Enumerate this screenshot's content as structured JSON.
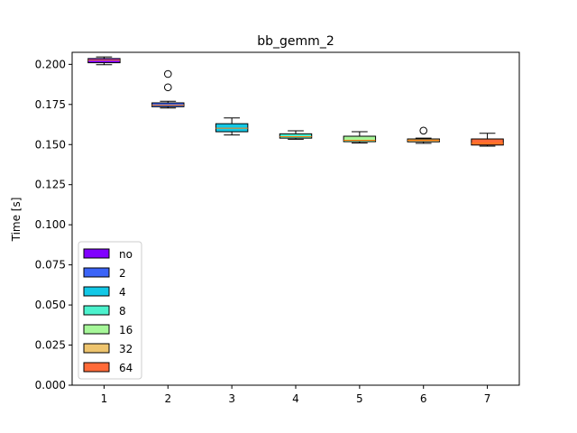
{
  "chart_data": {
    "type": "box",
    "title": "bb_gemm_2",
    "xlabel": "",
    "ylabel": "Time [s]",
    "xlim": [
      0.5,
      7.5
    ],
    "ylim": [
      0,
      0.2075
    ],
    "x_ticks": [
      "1",
      "2",
      "3",
      "4",
      "5",
      "6",
      "7"
    ],
    "y_ticks": [
      "0.000",
      "0.025",
      "0.050",
      "0.075",
      "0.100",
      "0.125",
      "0.150",
      "0.175",
      "0.200"
    ],
    "y_tick_values": [
      0,
      0.025,
      0.05,
      0.075,
      0.1,
      0.125,
      0.15,
      0.175,
      0.2
    ],
    "grid": false,
    "legend_position": "lower-left",
    "legend": [
      {
        "label": "no",
        "color": "#8000ff"
      },
      {
        "label": "2",
        "color": "#3b64f8"
      },
      {
        "label": "4",
        "color": "#12c8e6"
      },
      {
        "label": "8",
        "color": "#4cf2cd"
      },
      {
        "label": "16",
        "color": "#a6f799"
      },
      {
        "label": "32",
        "color": "#eec46e"
      },
      {
        "label": "64",
        "color": "#ff6a38"
      }
    ],
    "series": [
      {
        "name": "no",
        "x": 1,
        "color": "#8000ff",
        "whisker_low": 0.1998,
        "q1": 0.201,
        "median": 0.2026,
        "q3": 0.2036,
        "whisker_high": 0.2046,
        "outliers": []
      },
      {
        "name": "2",
        "x": 2,
        "color": "#3b64f8",
        "whisker_low": 0.1728,
        "q1": 0.1736,
        "median": 0.1746,
        "q3": 0.176,
        "whisker_high": 0.177,
        "outliers": [
          0.1857,
          0.194
        ]
      },
      {
        "name": "4",
        "x": 3,
        "color": "#12c8e6",
        "whisker_low": 0.156,
        "q1": 0.158,
        "median": 0.1602,
        "q3": 0.163,
        "whisker_high": 0.1666,
        "outliers": []
      },
      {
        "name": "8",
        "x": 4,
        "color": "#4cf2cd",
        "whisker_low": 0.1533,
        "q1": 0.154,
        "median": 0.1549,
        "q3": 0.1567,
        "whisker_high": 0.1586,
        "outliers": []
      },
      {
        "name": "16",
        "x": 5,
        "color": "#a6f799",
        "whisker_low": 0.151,
        "q1": 0.1518,
        "median": 0.1527,
        "q3": 0.1552,
        "whisker_high": 0.158,
        "outliers": []
      },
      {
        "name": "32",
        "x": 6,
        "color": "#eec46e",
        "whisker_low": 0.1508,
        "q1": 0.1517,
        "median": 0.1527,
        "q3": 0.1535,
        "whisker_high": 0.154,
        "outliers": [
          0.1587
        ]
      },
      {
        "name": "64",
        "x": 7,
        "color": "#ff6a38",
        "whisker_low": 0.149,
        "q1": 0.1497,
        "median": 0.1508,
        "q3": 0.1535,
        "whisker_high": 0.157,
        "outliers": []
      }
    ]
  }
}
